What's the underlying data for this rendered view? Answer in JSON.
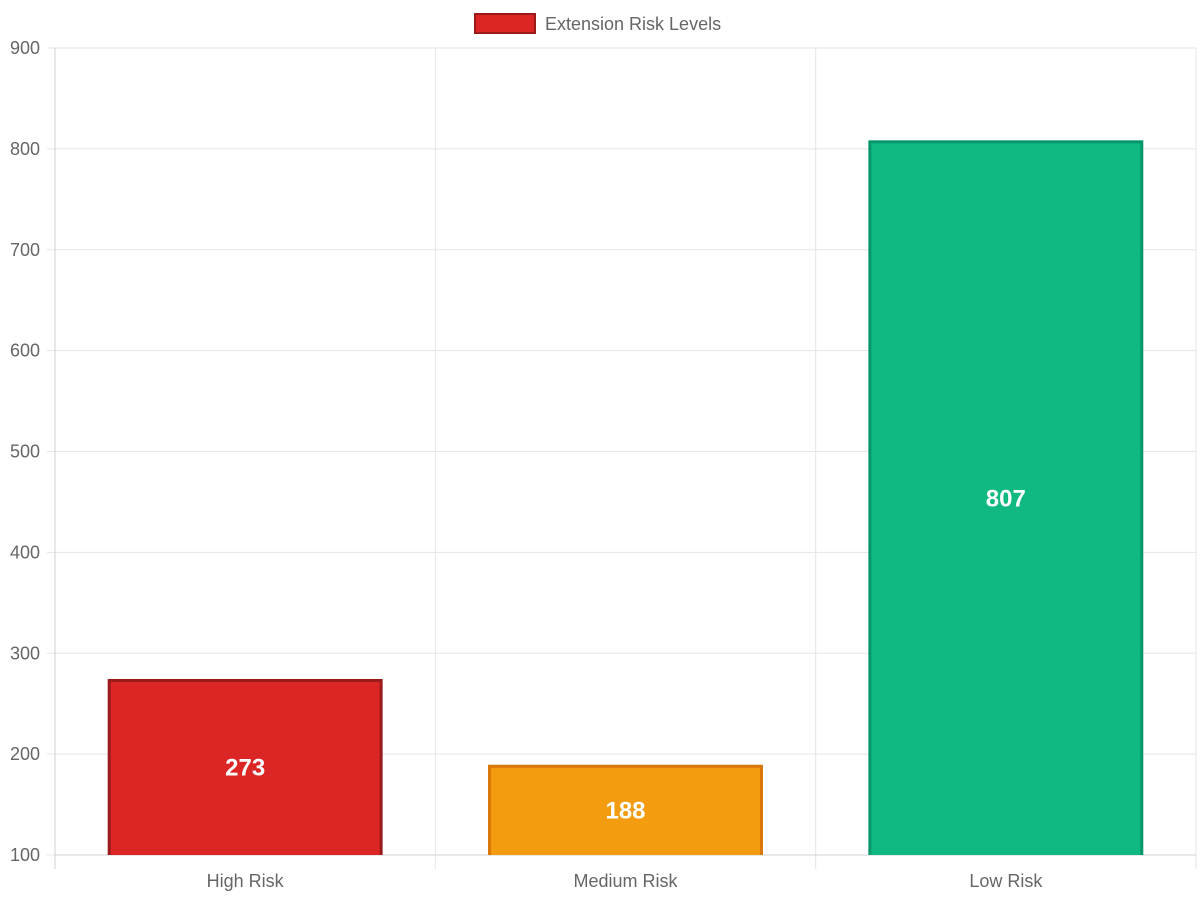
{
  "chart_data": {
    "type": "bar",
    "categories": [
      "High Risk",
      "Medium Risk",
      "Low Risk"
    ],
    "series": [
      {
        "name": "Extension Risk Levels",
        "values": [
          273,
          188,
          807
        ]
      }
    ],
    "value_labels": [
      "273",
      "188",
      "807"
    ],
    "colors": {
      "fills": [
        "#dc2626",
        "#f39c0f",
        "#10b981"
      ],
      "borders": [
        "#991b1b",
        "#d97706",
        "#059669"
      ],
      "legend_fill": "#dc2626",
      "legend_border": "#991b1b"
    },
    "ylim": [
      100,
      900
    ],
    "yticks": [
      "100",
      "200",
      "300",
      "400",
      "500",
      "600",
      "700",
      "800",
      "900"
    ],
    "grid": true,
    "legend_position": "top-center",
    "title": "",
    "xlabel": "",
    "ylabel": ""
  }
}
